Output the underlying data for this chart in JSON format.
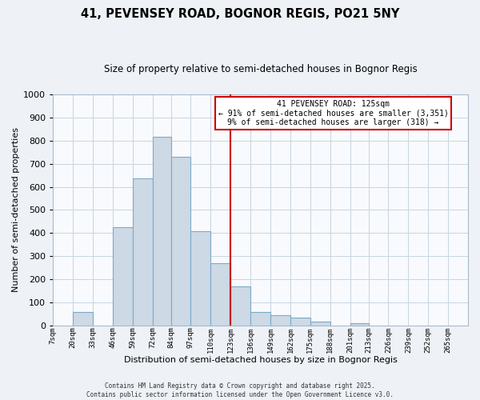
{
  "title": "41, PEVENSEY ROAD, BOGNOR REGIS, PO21 5NY",
  "subtitle": "Size of property relative to semi-detached houses in Bognor Regis",
  "xlabel": "Distribution of semi-detached houses by size in Bognor Regis",
  "ylabel": "Number of semi-detached properties",
  "bin_labels": [
    "7sqm",
    "20sqm",
    "33sqm",
    "46sqm",
    "59sqm",
    "72sqm",
    "84sqm",
    "97sqm",
    "110sqm",
    "123sqm",
    "136sqm",
    "149sqm",
    "162sqm",
    "175sqm",
    "188sqm",
    "201sqm",
    "213sqm",
    "226sqm",
    "239sqm",
    "252sqm",
    "265sqm"
  ],
  "bin_edges": [
    7,
    20,
    33,
    46,
    59,
    72,
    84,
    97,
    110,
    123,
    136,
    149,
    162,
    175,
    188,
    201,
    213,
    226,
    239,
    252,
    265,
    278
  ],
  "bar_values": [
    0,
    60,
    0,
    425,
    635,
    815,
    730,
    410,
    270,
    170,
    60,
    45,
    35,
    17,
    0,
    12,
    0,
    0,
    0,
    0,
    0
  ],
  "bar_color": "#cdd9e5",
  "bar_edge_color": "#7aaac8",
  "vline_x": 123,
  "vline_color": "#cc0000",
  "ylim": [
    0,
    1000
  ],
  "yticks": [
    0,
    100,
    200,
    300,
    400,
    500,
    600,
    700,
    800,
    900,
    1000
  ],
  "annotation_title": "41 PEVENSEY ROAD: 125sqm",
  "annotation_line1": "← 91% of semi-detached houses are smaller (3,351)",
  "annotation_line2": "9% of semi-detached houses are larger (318) →",
  "annotation_box_facecolor": "#ffffff",
  "annotation_box_edgecolor": "#cc0000",
  "footer_line1": "Contains HM Land Registry data © Crown copyright and database right 2025.",
  "footer_line2": "Contains public sector information licensed under the Open Government Licence v3.0.",
  "bg_color": "#eef2f7",
  "plot_bg_color": "#f8fafd",
  "grid_color": "#c8d4e0"
}
